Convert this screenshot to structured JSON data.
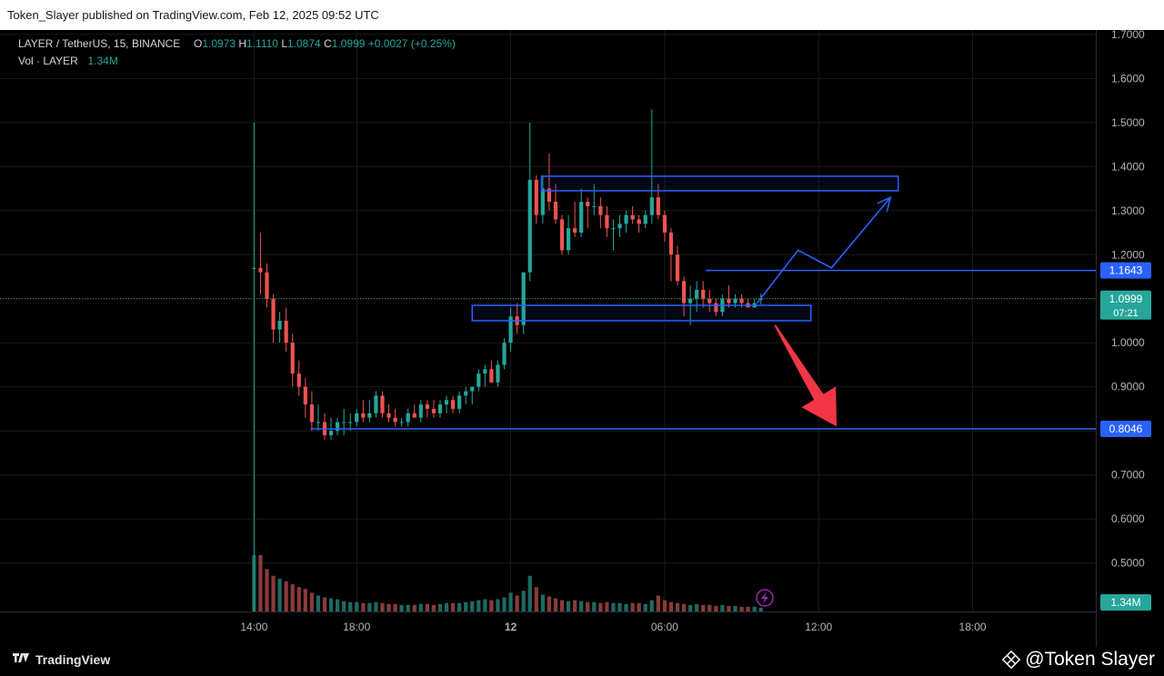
{
  "header": {
    "publisher_line": "Token_Slayer published on TradingView.com, Feb 12, 2025 09:52 UTC"
  },
  "legend": {
    "symbol": "LAYER / TetherUS, 15, BINANCE",
    "o_label": "O",
    "o_value": "1.0973",
    "h_label": "H",
    "h_value": "1.1110",
    "l_label": "L",
    "l_value": "1.0874",
    "c_label": "C",
    "c_value": "1.0999",
    "change": "+0.0027 (+0.25%)",
    "vol_label": "Vol · LAYER",
    "vol_value": "1.34M"
  },
  "footer": {
    "brand": "TradingView",
    "watermark": "@Token Slayer"
  },
  "colors": {
    "up": "#26a69a",
    "down": "#ef5350",
    "drawing": "#2962ff",
    "arrow_down": "#f23645",
    "bg": "#000000",
    "grid": "#1a1a1a"
  },
  "chart_data": {
    "type": "candlestick",
    "symbol": "LAYER / TetherUS",
    "interval": "15",
    "exchange": "BINANCE",
    "y_ticks": [
      "0.5000",
      "0.6000",
      "0.7000",
      "0.8000",
      "0.9000",
      "1.0000",
      "1.1000",
      "1.2000",
      "1.3000",
      "1.4000",
      "1.5000",
      "1.6000",
      "1.7000"
    ],
    "ylim": [
      0.39,
      1.71
    ],
    "x_ticks": [
      {
        "label": "14:00",
        "t": 14
      },
      {
        "label": "18:00",
        "t": 18
      },
      {
        "label": "12",
        "t": 24
      },
      {
        "label": "06:00",
        "t": 30
      },
      {
        "label": "12:00",
        "t": 36
      },
      {
        "label": "18:00",
        "t": 42
      }
    ],
    "xlim": [
      4.1,
      46.8
    ],
    "candles_ohlc": [
      [
        1.17,
        1.5,
        0.39,
        1.17
      ],
      [
        1.17,
        1.25,
        1.11,
        1.16
      ],
      [
        1.16,
        1.18,
        1.08,
        1.1
      ],
      [
        1.1,
        1.11,
        1.0,
        1.03
      ],
      [
        1.03,
        1.07,
        1.0,
        1.05
      ],
      [
        1.05,
        1.08,
        0.98,
        1.0
      ],
      [
        1.0,
        1.02,
        0.9,
        0.93
      ],
      [
        0.93,
        0.96,
        0.88,
        0.9
      ],
      [
        0.9,
        0.92,
        0.83,
        0.86
      ],
      [
        0.86,
        0.89,
        0.8,
        0.82
      ],
      [
        0.82,
        0.86,
        0.8,
        0.82
      ],
      [
        0.82,
        0.84,
        0.78,
        0.79
      ],
      [
        0.79,
        0.83,
        0.78,
        0.8
      ],
      [
        0.8,
        0.83,
        0.79,
        0.82
      ],
      [
        0.82,
        0.85,
        0.79,
        0.82
      ],
      [
        0.82,
        0.84,
        0.8,
        0.82
      ],
      [
        0.82,
        0.85,
        0.81,
        0.84
      ],
      [
        0.84,
        0.87,
        0.82,
        0.83
      ],
      [
        0.83,
        0.87,
        0.82,
        0.84
      ],
      [
        0.84,
        0.89,
        0.83,
        0.88
      ],
      [
        0.88,
        0.89,
        0.83,
        0.84
      ],
      [
        0.84,
        0.86,
        0.82,
        0.83
      ],
      [
        0.83,
        0.85,
        0.81,
        0.82
      ],
      [
        0.82,
        0.83,
        0.81,
        0.82
      ],
      [
        0.82,
        0.85,
        0.81,
        0.84
      ],
      [
        0.84,
        0.86,
        0.83,
        0.83
      ],
      [
        0.83,
        0.87,
        0.82,
        0.86
      ],
      [
        0.86,
        0.87,
        0.83,
        0.85
      ],
      [
        0.85,
        0.87,
        0.83,
        0.84
      ],
      [
        0.84,
        0.87,
        0.83,
        0.86
      ],
      [
        0.86,
        0.88,
        0.84,
        0.87
      ],
      [
        0.87,
        0.88,
        0.84,
        0.85
      ],
      [
        0.85,
        0.89,
        0.84,
        0.88
      ],
      [
        0.88,
        0.9,
        0.86,
        0.89
      ],
      [
        0.89,
        0.9,
        0.86,
        0.9
      ],
      [
        0.9,
        0.94,
        0.89,
        0.93
      ],
      [
        0.93,
        0.95,
        0.9,
        0.94
      ],
      [
        0.94,
        0.96,
        0.91,
        0.91
      ],
      [
        0.91,
        0.96,
        0.9,
        0.95
      ],
      [
        0.95,
        1.01,
        0.94,
        1.0
      ],
      [
        1.0,
        1.08,
        0.98,
        1.06
      ],
      [
        1.06,
        1.09,
        1.02,
        1.04
      ],
      [
        1.04,
        1.15,
        1.02,
        1.16
      ],
      [
        1.16,
        1.5,
        1.14,
        1.37
      ],
      [
        1.37,
        1.38,
        1.27,
        1.29
      ],
      [
        1.29,
        1.38,
        1.27,
        1.35
      ],
      [
        1.35,
        1.43,
        1.3,
        1.32
      ],
      [
        1.32,
        1.36,
        1.27,
        1.28
      ],
      [
        1.28,
        1.29,
        1.2,
        1.21
      ],
      [
        1.21,
        1.29,
        1.2,
        1.26
      ],
      [
        1.26,
        1.32,
        1.24,
        1.25
      ],
      [
        1.25,
        1.35,
        1.24,
        1.32
      ],
      [
        1.32,
        1.33,
        1.26,
        1.31
      ],
      [
        1.31,
        1.36,
        1.29,
        1.31
      ],
      [
        1.31,
        1.33,
        1.26,
        1.29
      ],
      [
        1.29,
        1.31,
        1.24,
        1.26
      ],
      [
        1.26,
        1.28,
        1.21,
        1.26
      ],
      [
        1.26,
        1.29,
        1.24,
        1.27
      ],
      [
        1.27,
        1.3,
        1.25,
        1.29
      ],
      [
        1.29,
        1.31,
        1.27,
        1.28
      ],
      [
        1.28,
        1.29,
        1.25,
        1.27
      ],
      [
        1.27,
        1.3,
        1.26,
        1.29
      ],
      [
        1.29,
        1.53,
        1.27,
        1.33
      ],
      [
        1.33,
        1.36,
        1.28,
        1.29
      ],
      [
        1.29,
        1.3,
        1.23,
        1.25
      ],
      [
        1.25,
        1.26,
        1.14,
        1.2
      ],
      [
        1.2,
        1.22,
        1.13,
        1.14
      ],
      [
        1.14,
        1.15,
        1.06,
        1.09
      ],
      [
        1.09,
        1.13,
        1.04,
        1.1
      ],
      [
        1.1,
        1.14,
        1.07,
        1.12
      ],
      [
        1.12,
        1.14,
        1.08,
        1.1
      ],
      [
        1.1,
        1.12,
        1.07,
        1.09
      ],
      [
        1.09,
        1.1,
        1.06,
        1.07
      ],
      [
        1.07,
        1.11,
        1.06,
        1.1
      ],
      [
        1.1,
        1.13,
        1.08,
        1.09
      ],
      [
        1.09,
        1.11,
        1.08,
        1.1
      ],
      [
        1.1,
        1.11,
        1.08,
        1.09
      ],
      [
        1.09,
        1.1,
        1.08,
        1.08
      ],
      [
        1.08,
        1.1,
        1.08,
        1.09
      ],
      [
        1.0973,
        1.111,
        1.0874,
        1.0999
      ]
    ],
    "volume": [
      60,
      60,
      45,
      38,
      35,
      32,
      29,
      26,
      24,
      20,
      17,
      15,
      14,
      13,
      11,
      10,
      10,
      9,
      9,
      10,
      9,
      8,
      8,
      7,
      7,
      7,
      8,
      8,
      7,
      8,
      9,
      9,
      9,
      10,
      11,
      12,
      13,
      12,
      13,
      15,
      20,
      17,
      22,
      38,
      26,
      18,
      16,
      14,
      12,
      11,
      12,
      11,
      10,
      10,
      9,
      10,
      9,
      9,
      8,
      9,
      9,
      8,
      12,
      17,
      12,
      10,
      9,
      8,
      7,
      8,
      7,
      7,
      6,
      7,
      6,
      6,
      5,
      5,
      5,
      4
    ],
    "volume_ylim": [
      0,
      60
    ],
    "price_labels": [
      {
        "value": "1.1643",
        "color": "#2962ff"
      },
      {
        "value": "1.0999",
        "sub": "07:21",
        "color": "#26a69a"
      },
      {
        "value": "0.8046",
        "color": "#2962ff"
      },
      {
        "value": "1.34M",
        "color": "#26a69a"
      }
    ],
    "drawings": {
      "zones": [
        {
          "t0": 25.2,
          "t1": 39.1,
          "p0": 1.345,
          "p1": 1.378
        },
        {
          "t0": 22.5,
          "t1": 35.7,
          "p0": 1.05,
          "p1": 1.085
        }
      ],
      "hlines": [
        {
          "price": 1.1643,
          "t0": 31.6
        },
        {
          "price": 0.8046,
          "t0": 16.2
        }
      ],
      "path_up": [
        [
          33.6,
          1.09
        ],
        [
          35.2,
          1.21
        ],
        [
          36.5,
          1.17
        ],
        [
          38.8,
          1.33
        ]
      ],
      "arrow_down": [
        [
          34.3,
          1.04
        ],
        [
          36.7,
          0.81
        ]
      ],
      "last_price": 1.0999
    }
  }
}
